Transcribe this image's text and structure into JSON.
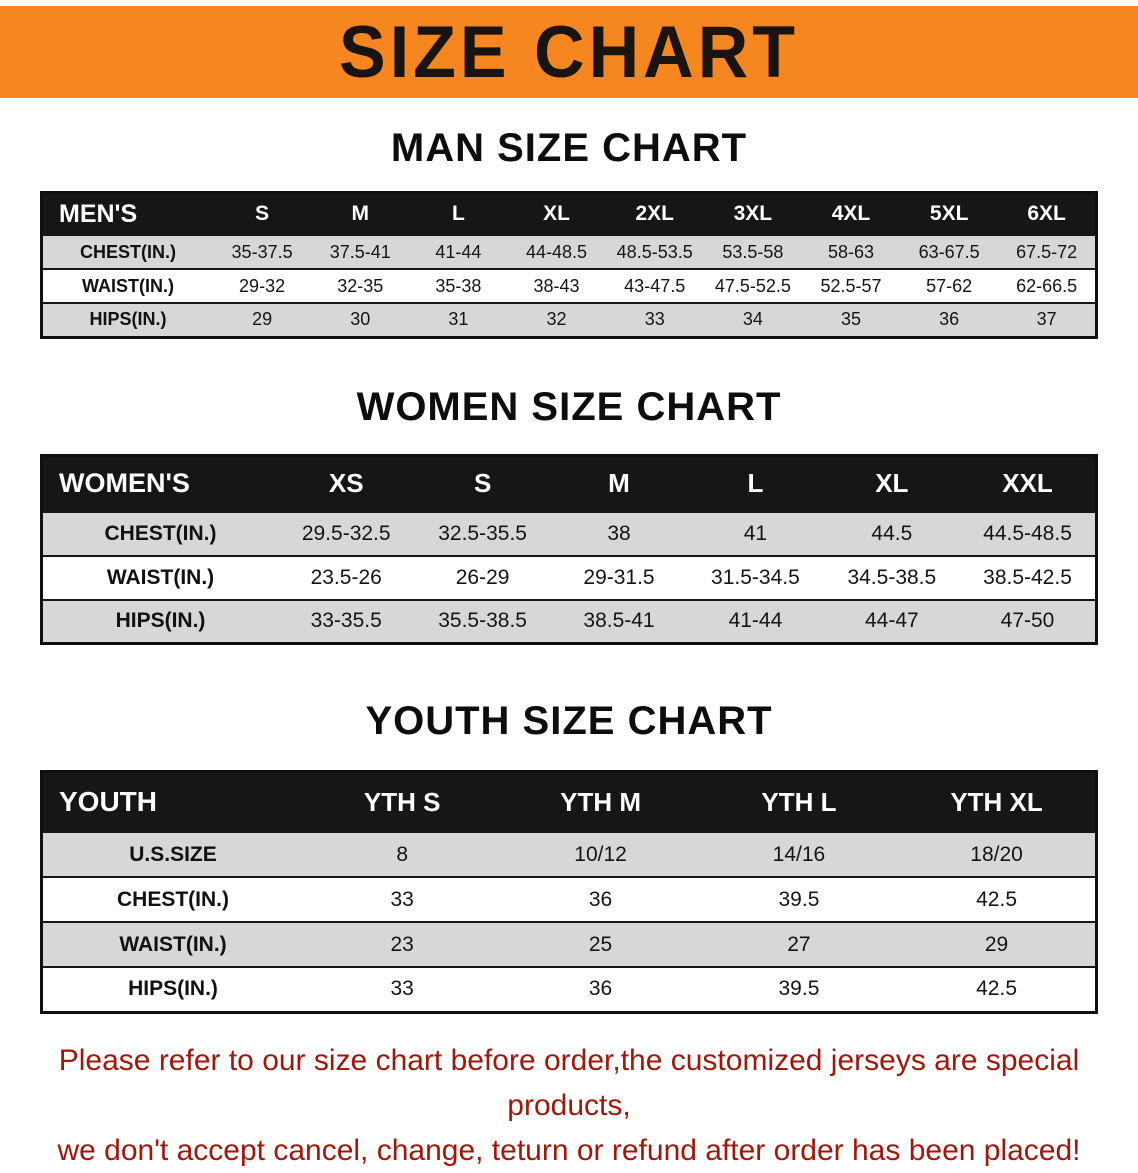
{
  "banner": {
    "title": "SIZE CHART"
  },
  "colors": {
    "banner_bg": "#f6861f",
    "table_header_bg": "#161616",
    "stripe_bg": "#d7d7d7",
    "footer_text": "#a0170c"
  },
  "men": {
    "heading": "MAN SIZE CHART",
    "corner": "MEN'S",
    "sizes": [
      "S",
      "M",
      "L",
      "XL",
      "2XL",
      "3XL",
      "4XL",
      "5XL",
      "6XL"
    ],
    "rows": [
      {
        "label": "CHEST(IN.)",
        "values": [
          "35-37.5",
          "37.5-41",
          "41-44",
          "44-48.5",
          "48.5-53.5",
          "53.5-58",
          "58-63",
          "63-67.5",
          "67.5-72"
        ]
      },
      {
        "label": "WAIST(IN.)",
        "values": [
          "29-32",
          "32-35",
          "35-38",
          "38-43",
          "43-47.5",
          "47.5-52.5",
          "52.5-57",
          "57-62",
          "62-66.5"
        ]
      },
      {
        "label": "HIPS(IN.)",
        "values": [
          "29",
          "30",
          "31",
          "32",
          "33",
          "34",
          "35",
          "36",
          "37"
        ]
      }
    ]
  },
  "women": {
    "heading": "WOMEN SIZE CHART",
    "corner": "WOMEN'S",
    "sizes": [
      "XS",
      "S",
      "M",
      "L",
      "XL",
      "XXL"
    ],
    "rows": [
      {
        "label": "CHEST(IN.)",
        "values": [
          "29.5-32.5",
          "32.5-35.5",
          "38",
          "41",
          "44.5",
          "44.5-48.5"
        ]
      },
      {
        "label": "WAIST(IN.)",
        "values": [
          "23.5-26",
          "26-29",
          "29-31.5",
          "31.5-34.5",
          "34.5-38.5",
          "38.5-42.5"
        ]
      },
      {
        "label": "HIPS(IN.)",
        "values": [
          "33-35.5",
          "35.5-38.5",
          "38.5-41",
          "41-44",
          "44-47",
          "47-50"
        ]
      }
    ]
  },
  "youth": {
    "heading": "YOUTH SIZE CHART",
    "corner": "YOUTH",
    "sizes": [
      "YTH S",
      "YTH M",
      "YTH L",
      "YTH XL"
    ],
    "rows": [
      {
        "label": "U.S.SIZE",
        "values": [
          "8",
          "10/12",
          "14/16",
          "18/20"
        ]
      },
      {
        "label": "CHEST(IN.)",
        "values": [
          "33",
          "36",
          "39.5",
          "42.5"
        ]
      },
      {
        "label": "WAIST(IN.)",
        "values": [
          "23",
          "25",
          "27",
          "29"
        ]
      },
      {
        "label": "HIPS(IN.)",
        "values": [
          "33",
          "36",
          "39.5",
          "42.5"
        ]
      }
    ]
  },
  "footer": {
    "line1": "Please refer to our size chart before order,the customized jerseys are special products,",
    "line2": "we don't accept cancel, change, teturn or refund after order has been placed!"
  }
}
